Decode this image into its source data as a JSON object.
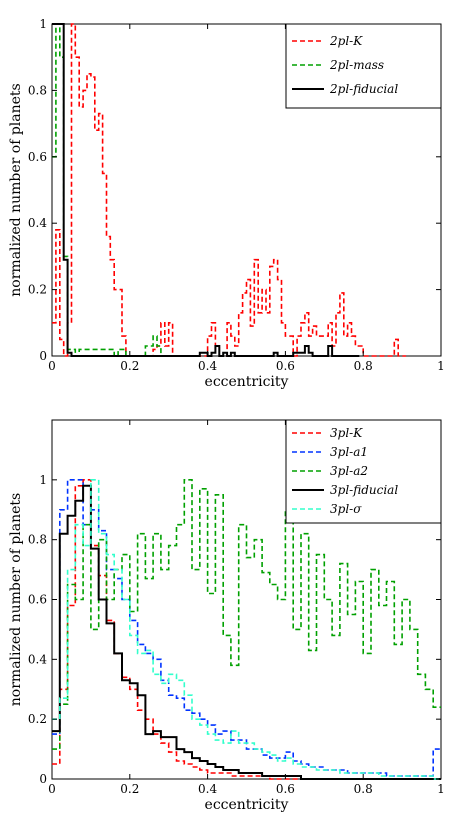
{
  "chart_data": [
    {
      "type": "line",
      "xlabel": "eccentricity",
      "ylabel": "normalized number of planets",
      "xlim": [
        0,
        1
      ],
      "ylim": [
        0,
        1
      ],
      "xticks": [
        "0",
        "0.2",
        "0.4",
        "0.6",
        "0.8",
        "1"
      ],
      "yticks": [
        "0",
        "0.2",
        "0.4",
        "0.6",
        "0.8",
        "1"
      ],
      "grid": false,
      "legend": "top-right",
      "series": [
        {
          "name": "2pl-K",
          "color": "#ff0000",
          "dash": "dashed",
          "x": [
            0.0,
            0.01,
            0.02,
            0.03,
            0.04,
            0.05,
            0.06,
            0.07,
            0.08,
            0.09,
            0.1,
            0.11,
            0.12,
            0.13,
            0.14,
            0.15,
            0.16,
            0.17,
            0.18,
            0.19,
            0.2,
            0.21,
            0.22,
            0.23,
            0.24,
            0.25,
            0.26,
            0.27,
            0.28,
            0.29,
            0.3,
            0.31,
            0.32,
            0.33,
            0.34,
            0.35,
            0.36,
            0.37,
            0.38,
            0.39,
            0.4,
            0.41,
            0.42,
            0.43,
            0.44,
            0.45,
            0.46,
            0.47,
            0.48,
            0.49,
            0.5,
            0.51,
            0.52,
            0.53,
            0.54,
            0.55,
            0.56,
            0.57,
            0.58,
            0.59,
            0.6,
            0.61,
            0.62,
            0.63,
            0.64,
            0.65,
            0.66,
            0.67,
            0.68,
            0.69,
            0.7,
            0.71,
            0.72,
            0.73,
            0.74,
            0.75,
            0.76,
            0.77,
            0.78,
            0.79,
            0.8,
            0.81,
            0.82,
            0.83,
            0.84,
            0.85,
            0.86,
            0.87,
            0.88,
            0.89,
            0.9
          ],
          "values": [
            0.1,
            0.38,
            0.05,
            0.0,
            0.1,
            1.0,
            0.9,
            0.75,
            0.8,
            0.85,
            0.84,
            0.68,
            0.73,
            0.55,
            0.36,
            0.29,
            0.2,
            0.2,
            0.06,
            0.0,
            0.0,
            0.0,
            0.0,
            0.0,
            0.0,
            0.0,
            0.02,
            0.03,
            0.1,
            0.03,
            0.1,
            0.0,
            0.0,
            0.0,
            0.0,
            0.0,
            0.0,
            0.0,
            0.0,
            0.0,
            0.06,
            0.1,
            0.03,
            0.0,
            0.0,
            0.1,
            0.06,
            0.03,
            0.13,
            0.19,
            0.23,
            0.09,
            0.29,
            0.13,
            0.2,
            0.13,
            0.27,
            0.29,
            0.23,
            0.1,
            0.06,
            0.06,
            0.0,
            0.06,
            0.1,
            0.13,
            0.06,
            0.09,
            0.06,
            0.06,
            0.06,
            0.1,
            0.03,
            0.13,
            0.19,
            0.06,
            0.1,
            0.06,
            0.03,
            0.03,
            0.0,
            0.0,
            0.0,
            0.0,
            0.0,
            0.0,
            0.0,
            0.0,
            0.05,
            0.0,
            0.0
          ]
        },
        {
          "name": "2pl-mass",
          "color": "#00a000",
          "dash": "dashed",
          "x": [
            0.0,
            0.01,
            0.02,
            0.03,
            0.04,
            0.05,
            0.06,
            0.07,
            0.08,
            0.09,
            0.1,
            0.11,
            0.12,
            0.13,
            0.14,
            0.15,
            0.16,
            0.17,
            0.18,
            0.19,
            0.2,
            0.21,
            0.22,
            0.23,
            0.24,
            0.25,
            0.26,
            0.27,
            0.28,
            0.29,
            0.3
          ],
          "values": [
            0.6,
            1.0,
            0.9,
            0.3,
            0.02,
            0.02,
            0.0,
            0.02,
            0.02,
            0.02,
            0.02,
            0.02,
            0.02,
            0.02,
            0.02,
            0.02,
            0.0,
            0.02,
            0.02,
            0.0,
            0.0,
            0.0,
            0.0,
            0.0,
            0.03,
            0.03,
            0.06,
            0.03,
            0.0,
            0.0,
            0.0
          ]
        },
        {
          "name": "2pl-fiducial",
          "color": "#000000",
          "dash": "solid",
          "x": [
            0.0,
            0.01,
            0.02,
            0.03,
            0.04,
            0.05,
            0.06,
            0.07,
            0.08,
            0.09,
            0.1,
            0.11,
            0.12,
            0.13,
            0.14,
            0.15,
            0.16,
            0.17,
            0.18,
            0.19,
            0.2,
            0.21,
            0.22,
            0.23,
            0.24,
            0.25,
            0.26,
            0.27,
            0.28,
            0.29,
            0.3,
            0.31,
            0.32,
            0.33,
            0.34,
            0.35,
            0.36,
            0.37,
            0.38,
            0.39,
            0.4,
            0.41,
            0.42,
            0.43,
            0.44,
            0.45,
            0.46,
            0.47,
            0.48,
            0.49,
            0.5,
            0.51,
            0.52,
            0.53,
            0.54,
            0.55,
            0.56,
            0.57,
            0.58,
            0.59,
            0.6,
            0.61,
            0.62,
            0.63,
            0.64,
            0.65,
            0.66,
            0.67,
            0.68,
            0.69,
            0.7,
            0.71,
            0.72,
            0.73,
            0.74,
            0.75,
            0.76,
            0.77,
            0.78
          ],
          "values": [
            1.0,
            1.0,
            1.0,
            0.29,
            0.01,
            0.0,
            0.0,
            0.0,
            0.0,
            0.0,
            0.0,
            0.0,
            0.0,
            0.0,
            0.0,
            0.0,
            0.0,
            0.0,
            0.0,
            0.0,
            0.0,
            0.0,
            0.0,
            0.0,
            0.0,
            0.0,
            0.0,
            0.0,
            0.0,
            0.0,
            0.0,
            0.0,
            0.0,
            0.0,
            0.0,
            0.0,
            0.0,
            0.0,
            0.01,
            0.01,
            0.0,
            0.01,
            0.03,
            0.0,
            0.01,
            0.0,
            0.01,
            0.0,
            0.0,
            0.0,
            0.0,
            0.0,
            0.0,
            0.0,
            0.0,
            0.0,
            0.0,
            0.01,
            0.0,
            0.0,
            0.0,
            0.0,
            0.01,
            0.01,
            0.01,
            0.03,
            0.01,
            0.0,
            0.0,
            0.0,
            0.0,
            0.03,
            0.0,
            0.0,
            0.0,
            0.0,
            0.0,
            0.0,
            0.0
          ]
        }
      ]
    },
    {
      "type": "line",
      "xlabel": "eccentricity",
      "ylabel": "normalized number of planets",
      "xlim": [
        0,
        1
      ],
      "ylim": [
        0,
        1.2
      ],
      "xticks": [
        "0",
        "0.2",
        "0.4",
        "0.6",
        "0.8",
        "1"
      ],
      "yticks": [
        "0",
        "0.2",
        "0.4",
        "0.6",
        "0.8",
        "1"
      ],
      "grid": false,
      "legend": "top-right",
      "series": [
        {
          "name": "3pl-K",
          "color": "#ff0000",
          "dash": "dashed",
          "x": [
            0.0,
            0.02,
            0.04,
            0.06,
            0.08,
            0.1,
            0.12,
            0.14,
            0.16,
            0.18,
            0.2,
            0.22,
            0.24,
            0.26,
            0.28,
            0.3,
            0.32,
            0.34,
            0.36,
            0.38,
            0.4,
            0.42,
            0.44,
            0.46,
            0.48,
            0.5,
            0.52,
            0.54,
            0.56,
            0.58,
            0.6,
            0.62,
            0.64,
            0.66,
            0.68,
            0.7,
            0.72,
            0.74,
            0.76,
            0.78,
            0.8,
            0.82,
            0.84,
            0.86,
            0.88,
            0.9,
            0.92,
            0.94,
            0.96,
            0.98
          ],
          "values": [
            0.05,
            0.3,
            0.58,
            0.98,
            1.0,
            0.78,
            0.68,
            0.53,
            0.42,
            0.34,
            0.3,
            0.23,
            0.2,
            0.15,
            0.12,
            0.09,
            0.06,
            0.05,
            0.04,
            0.03,
            0.02,
            0.02,
            0.02,
            0.01,
            0.01,
            0.01,
            0.01,
            0.01,
            0.0,
            0.0,
            0.0,
            0.0,
            0.0,
            0.0,
            0.0,
            0.0,
            0.0,
            0.0,
            0.0,
            0.0,
            0.0,
            0.0,
            0.0,
            0.0,
            0.0,
            0.0,
            0.0,
            0.0,
            0.0,
            0.0
          ]
        },
        {
          "name": "3pl-a1",
          "color": "#0033ff",
          "dash": "dashed",
          "x": [
            0.0,
            0.02,
            0.04,
            0.06,
            0.08,
            0.1,
            0.12,
            0.14,
            0.16,
            0.18,
            0.2,
            0.22,
            0.24,
            0.26,
            0.28,
            0.3,
            0.32,
            0.34,
            0.36,
            0.38,
            0.4,
            0.42,
            0.44,
            0.46,
            0.48,
            0.5,
            0.52,
            0.54,
            0.56,
            0.58,
            0.6,
            0.62,
            0.64,
            0.66,
            0.68,
            0.7,
            0.72,
            0.74,
            0.76,
            0.78,
            0.8,
            0.82,
            0.84,
            0.86,
            0.88,
            0.9,
            0.92,
            0.94,
            0.96,
            0.98
          ],
          "values": [
            0.15,
            0.9,
            1.0,
            1.0,
            0.85,
            0.9,
            0.83,
            0.7,
            0.67,
            0.6,
            0.53,
            0.45,
            0.42,
            0.4,
            0.33,
            0.28,
            0.27,
            0.23,
            0.22,
            0.2,
            0.18,
            0.15,
            0.16,
            0.13,
            0.13,
            0.1,
            0.1,
            0.08,
            0.07,
            0.07,
            0.09,
            0.06,
            0.05,
            0.04,
            0.04,
            0.03,
            0.03,
            0.03,
            0.02,
            0.02,
            0.02,
            0.02,
            0.02,
            0.01,
            0.01,
            0.01,
            0.01,
            0.01,
            0.01,
            0.1
          ]
        },
        {
          "name": "3pl-a2",
          "color": "#00a000",
          "dash": "dashed",
          "x": [
            0.0,
            0.02,
            0.04,
            0.06,
            0.08,
            0.1,
            0.12,
            0.14,
            0.16,
            0.18,
            0.2,
            0.22,
            0.24,
            0.26,
            0.28,
            0.3,
            0.32,
            0.34,
            0.36,
            0.38,
            0.4,
            0.42,
            0.44,
            0.46,
            0.48,
            0.5,
            0.52,
            0.54,
            0.56,
            0.58,
            0.6,
            0.62,
            0.64,
            0.66,
            0.68,
            0.7,
            0.72,
            0.74,
            0.76,
            0.78,
            0.8,
            0.82,
            0.84,
            0.86,
            0.88,
            0.9,
            0.92,
            0.94,
            0.96,
            0.98
          ],
          "values": [
            0.1,
            0.25,
            0.65,
            0.6,
            0.85,
            0.5,
            0.8,
            0.6,
            0.7,
            0.75,
            0.56,
            0.82,
            0.67,
            0.82,
            0.7,
            0.78,
            0.85,
            1.0,
            0.7,
            0.97,
            0.62,
            0.95,
            0.48,
            0.38,
            0.85,
            0.74,
            0.8,
            0.69,
            0.65,
            0.6,
            0.9,
            0.5,
            0.82,
            0.43,
            0.75,
            0.6,
            0.48,
            0.72,
            0.55,
            0.66,
            0.42,
            0.7,
            0.58,
            0.66,
            0.45,
            0.6,
            0.5,
            0.35,
            0.3,
            0.24
          ]
        },
        {
          "name": "3pl-fiducial",
          "color": "#000000",
          "dash": "solid",
          "x": [
            0.0,
            0.02,
            0.04,
            0.06,
            0.08,
            0.1,
            0.12,
            0.14,
            0.16,
            0.18,
            0.2,
            0.22,
            0.24,
            0.26,
            0.28,
            0.3,
            0.32,
            0.34,
            0.36,
            0.38,
            0.4,
            0.42,
            0.44,
            0.46,
            0.48,
            0.5,
            0.52,
            0.54,
            0.56,
            0.58,
            0.6,
            0.62,
            0.64,
            0.66,
            0.68,
            0.7,
            0.72,
            0.74,
            0.76,
            0.78,
            0.8,
            0.82,
            0.84,
            0.86,
            0.88,
            0.9,
            0.92,
            0.94,
            0.96,
            0.98
          ],
          "values": [
            0.16,
            0.82,
            0.88,
            0.93,
            0.98,
            0.77,
            0.6,
            0.52,
            0.42,
            0.33,
            0.32,
            0.28,
            0.15,
            0.16,
            0.14,
            0.14,
            0.1,
            0.09,
            0.07,
            0.06,
            0.05,
            0.04,
            0.03,
            0.03,
            0.02,
            0.02,
            0.02,
            0.01,
            0.01,
            0.01,
            0.01,
            0.01,
            0.0,
            0.0,
            0.0,
            0.0,
            0.0,
            0.0,
            0.0,
            0.0,
            0.0,
            0.0,
            0.0,
            0.0,
            0.0,
            0.0,
            0.0,
            0.0,
            0.0,
            0.0
          ]
        },
        {
          "name": "3pl-σ",
          "color": "#33ffcc",
          "dash": "dashed",
          "x": [
            0.0,
            0.02,
            0.04,
            0.06,
            0.08,
            0.1,
            0.12,
            0.14,
            0.16,
            0.18,
            0.2,
            0.22,
            0.24,
            0.26,
            0.28,
            0.3,
            0.32,
            0.34,
            0.36,
            0.38,
            0.4,
            0.42,
            0.44,
            0.46,
            0.48,
            0.5,
            0.52,
            0.54,
            0.56,
            0.58,
            0.6,
            0.62,
            0.64,
            0.66,
            0.68,
            0.7,
            0.72,
            0.74,
            0.76,
            0.78,
            0.8,
            0.82,
            0.84,
            0.86,
            0.88,
            0.9,
            0.92,
            0.94,
            0.96,
            0.98
          ],
          "values": [
            0.2,
            0.27,
            0.7,
            0.85,
            0.78,
            1.0,
            0.82,
            0.75,
            0.7,
            0.6,
            0.48,
            0.42,
            0.43,
            0.35,
            0.32,
            0.35,
            0.33,
            0.28,
            0.2,
            0.18,
            0.15,
            0.13,
            0.12,
            0.16,
            0.12,
            0.12,
            0.1,
            0.09,
            0.08,
            0.06,
            0.07,
            0.05,
            0.04,
            0.04,
            0.03,
            0.03,
            0.03,
            0.02,
            0.02,
            0.02,
            0.02,
            0.02,
            0.01,
            0.01,
            0.01,
            0.01,
            0.01,
            0.01,
            0.01,
            0.0
          ]
        }
      ]
    }
  ]
}
